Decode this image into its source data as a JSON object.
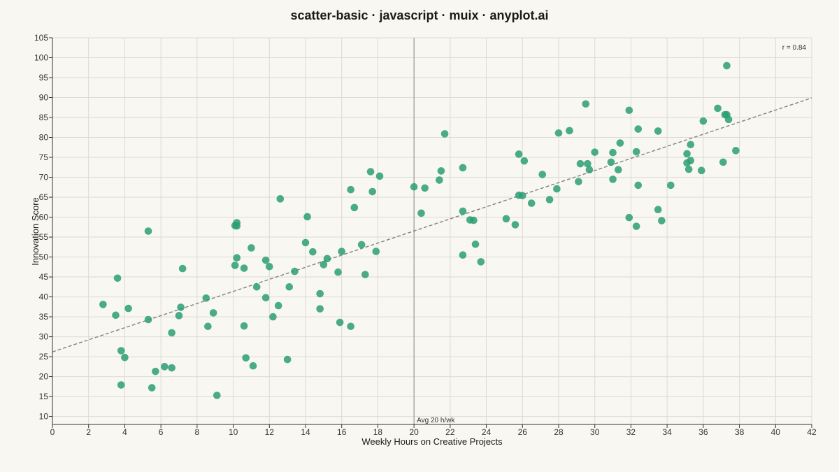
{
  "chart_data": {
    "type": "scatter",
    "title": "scatter-basic · javascript · muix · anyplot.ai",
    "xlabel": "Weekly Hours on Creative Projects",
    "ylabel": "Innovation Score",
    "xlim": [
      0,
      42
    ],
    "ylim": [
      8,
      105
    ],
    "xticks": [
      0,
      2,
      4,
      6,
      8,
      10,
      12,
      14,
      16,
      18,
      20,
      22,
      24,
      26,
      28,
      30,
      32,
      34,
      36,
      38,
      40,
      42
    ],
    "yticks": [
      10,
      15,
      20,
      25,
      30,
      35,
      40,
      45,
      50,
      55,
      60,
      65,
      70,
      75,
      80,
      85,
      90,
      95,
      100,
      105
    ],
    "grid": true,
    "reference_line": {
      "x": 20,
      "label": "Avg 20 h/wk"
    },
    "correlation_label": "r = 0.84",
    "trend_line": {
      "x": [
        0,
        42
      ],
      "y": [
        26.2,
        89.9
      ]
    },
    "point_color": "#2a9d74",
    "points": [
      [
        2.8,
        38.1
      ],
      [
        3.5,
        35.4
      ],
      [
        3.6,
        44.7
      ],
      [
        3.8,
        26.5
      ],
      [
        3.8,
        17.9
      ],
      [
        4.0,
        24.8
      ],
      [
        4.2,
        37.1
      ],
      [
        5.3,
        56.5
      ],
      [
        5.3,
        34.3
      ],
      [
        5.5,
        17.2
      ],
      [
        5.7,
        21.3
      ],
      [
        6.2,
        22.5
      ],
      [
        6.6,
        22.2
      ],
      [
        6.6,
        31.0
      ],
      [
        7.0,
        35.3
      ],
      [
        7.1,
        37.4
      ],
      [
        7.2,
        47.1
      ],
      [
        8.5,
        39.7
      ],
      [
        8.6,
        32.6
      ],
      [
        8.9,
        36.0
      ],
      [
        9.1,
        15.3
      ],
      [
        10.1,
        57.9
      ],
      [
        10.2,
        58.6
      ],
      [
        10.2,
        57.8
      ],
      [
        10.1,
        47.9
      ],
      [
        10.2,
        49.8
      ],
      [
        10.6,
        47.2
      ],
      [
        10.6,
        32.7
      ],
      [
        10.7,
        24.7
      ],
      [
        11.0,
        52.3
      ],
      [
        11.1,
        22.7
      ],
      [
        11.3,
        42.5
      ],
      [
        11.8,
        49.2
      ],
      [
        11.8,
        39.8
      ],
      [
        12.0,
        47.6
      ],
      [
        12.2,
        35.0
      ],
      [
        12.5,
        37.8
      ],
      [
        12.6,
        64.6
      ],
      [
        13.0,
        24.3
      ],
      [
        13.1,
        42.5
      ],
      [
        13.4,
        46.4
      ],
      [
        14.0,
        53.6
      ],
      [
        14.1,
        60.1
      ],
      [
        14.4,
        51.3
      ],
      [
        14.8,
        40.8
      ],
      [
        14.8,
        37.0
      ],
      [
        15.0,
        48.1
      ],
      [
        15.2,
        49.6
      ],
      [
        15.8,
        46.2
      ],
      [
        15.9,
        33.6
      ],
      [
        16.0,
        51.4
      ],
      [
        16.5,
        32.6
      ],
      [
        16.5,
        66.9
      ],
      [
        16.7,
        62.4
      ],
      [
        17.1,
        53.1
      ],
      [
        17.3,
        45.6
      ],
      [
        17.6,
        71.4
      ],
      [
        17.7,
        66.4
      ],
      [
        17.9,
        51.4
      ],
      [
        18.1,
        70.3
      ],
      [
        20.0,
        67.6
      ],
      [
        20.4,
        61.0
      ],
      [
        20.6,
        67.3
      ],
      [
        21.4,
        69.3
      ],
      [
        21.5,
        71.6
      ],
      [
        21.7,
        80.9
      ],
      [
        22.7,
        72.4
      ],
      [
        22.7,
        61.5
      ],
      [
        22.7,
        50.5
      ],
      [
        23.1,
        59.3
      ],
      [
        23.3,
        59.2
      ],
      [
        23.4,
        53.2
      ],
      [
        23.7,
        48.8
      ],
      [
        25.1,
        59.6
      ],
      [
        25.6,
        58.1
      ],
      [
        25.8,
        65.5
      ],
      [
        25.8,
        75.8
      ],
      [
        26.0,
        65.4
      ],
      [
        26.1,
        74.1
      ],
      [
        26.5,
        63.5
      ],
      [
        27.1,
        70.7
      ],
      [
        27.5,
        64.4
      ],
      [
        27.9,
        67.1
      ],
      [
        28.0,
        81.1
      ],
      [
        28.6,
        81.7
      ],
      [
        29.1,
        68.9
      ],
      [
        29.2,
        73.4
      ],
      [
        29.5,
        88.4
      ],
      [
        29.6,
        73.4
      ],
      [
        29.7,
        71.9
      ],
      [
        30.0,
        76.3
      ],
      [
        30.9,
        73.8
      ],
      [
        31.0,
        76.2
      ],
      [
        31.0,
        69.5
      ],
      [
        31.3,
        71.9
      ],
      [
        31.4,
        78.6
      ],
      [
        31.9,
        86.8
      ],
      [
        31.9,
        59.9
      ],
      [
        32.3,
        76.4
      ],
      [
        32.3,
        57.7
      ],
      [
        32.4,
        82.1
      ],
      [
        32.4,
        68.0
      ],
      [
        33.5,
        81.6
      ],
      [
        33.5,
        61.9
      ],
      [
        33.7,
        59.1
      ],
      [
        34.2,
        68.0
      ],
      [
        35.1,
        73.6
      ],
      [
        35.1,
        75.9
      ],
      [
        35.2,
        72.0
      ],
      [
        35.3,
        78.2
      ],
      [
        35.3,
        74.2
      ],
      [
        35.9,
        71.7
      ],
      [
        36.0,
        84.1
      ],
      [
        36.8,
        87.3
      ],
      [
        37.1,
        73.8
      ],
      [
        37.2,
        85.7
      ],
      [
        37.3,
        85.7
      ],
      [
        37.3,
        98.0
      ],
      [
        37.4,
        84.5
      ],
      [
        37.8,
        76.7
      ]
    ]
  }
}
